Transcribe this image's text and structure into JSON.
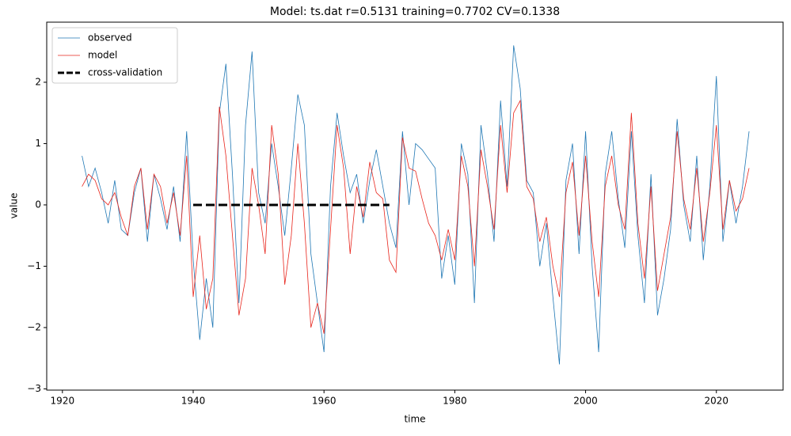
{
  "chart_data": {
    "type": "line",
    "title": "Model: ts.dat  r=0.5131  training=0.7702  CV=0.1338",
    "xlabel": "time",
    "ylabel": "value",
    "x": [
      1923,
      1924,
      1925,
      1926,
      1927,
      1928,
      1929,
      1930,
      1931,
      1932,
      1933,
      1934,
      1935,
      1936,
      1937,
      1938,
      1939,
      1940,
      1941,
      1942,
      1943,
      1944,
      1945,
      1946,
      1947,
      1948,
      1949,
      1950,
      1951,
      1952,
      1953,
      1954,
      1955,
      1956,
      1957,
      1958,
      1959,
      1960,
      1961,
      1962,
      1963,
      1964,
      1965,
      1966,
      1967,
      1968,
      1969,
      1970,
      1971,
      1972,
      1973,
      1974,
      1975,
      1976,
      1977,
      1978,
      1979,
      1980,
      1981,
      1982,
      1983,
      1984,
      1985,
      1986,
      1987,
      1988,
      1989,
      1990,
      1991,
      1992,
      1993,
      1994,
      1995,
      1996,
      1997,
      1998,
      1999,
      2000,
      2001,
      2002,
      2003,
      2004,
      2005,
      2006,
      2007,
      2008,
      2009,
      2010,
      2011,
      2012,
      2013,
      2014,
      2015,
      2016,
      2017,
      2018,
      2019,
      2020,
      2021,
      2022,
      2023,
      2024,
      2025
    ],
    "series": [
      {
        "name": "observed",
        "color": "#1f77b4",
        "linestyle": "solid",
        "values": [
          0.8,
          0.3,
          0.6,
          0.2,
          -0.3,
          0.4,
          -0.4,
          -0.5,
          0.2,
          0.6,
          -0.6,
          0.5,
          0.1,
          -0.4,
          0.3,
          -0.6,
          1.2,
          -0.9,
          -2.2,
          -1.2,
          -2.0,
          1.5,
          2.3,
          0.5,
          -1.6,
          1.3,
          2.5,
          0.2,
          -0.3,
          1.0,
          0.3,
          -0.5,
          0.6,
          1.8,
          1.3,
          -0.8,
          -1.6,
          -2.4,
          0.3,
          1.5,
          0.8,
          0.2,
          0.5,
          -0.3,
          0.4,
          0.9,
          0.3,
          -0.3,
          -0.7,
          1.2,
          0.0,
          1.0,
          0.9,
          0.75,
          0.6,
          -1.2,
          -0.5,
          -1.3,
          1.0,
          0.5,
          -1.6,
          1.3,
          0.5,
          -0.6,
          1.7,
          0.3,
          2.6,
          1.9,
          0.4,
          0.2,
          -1.0,
          -0.3,
          -1.5,
          -2.6,
          0.4,
          1.0,
          -0.8,
          1.2,
          -1.0,
          -2.4,
          0.5,
          1.2,
          0.1,
          -0.7,
          1.2,
          -0.5,
          -1.6,
          0.5,
          -1.8,
          -1.2,
          -0.4,
          1.4,
          0.0,
          -0.6,
          0.8,
          -0.9,
          0.3,
          2.1,
          -0.6,
          0.4,
          -0.3,
          0.3,
          1.2
        ]
      },
      {
        "name": "model",
        "color": "#e8251c",
        "linestyle": "solid",
        "values": [
          0.3,
          0.5,
          0.4,
          0.1,
          0.0,
          0.2,
          -0.2,
          -0.5,
          0.3,
          0.6,
          -0.4,
          0.5,
          0.3,
          -0.3,
          0.2,
          -0.5,
          0.8,
          -1.5,
          -0.5,
          -1.7,
          -1.2,
          1.6,
          0.8,
          -0.5,
          -1.8,
          -1.2,
          0.6,
          0.0,
          -0.8,
          1.3,
          0.5,
          -1.3,
          -0.5,
          1.0,
          -0.3,
          -2.0,
          -1.6,
          -2.1,
          -0.4,
          1.3,
          0.6,
          -0.8,
          0.3,
          -0.2,
          0.7,
          0.2,
          0.1,
          -0.9,
          -1.1,
          1.1,
          0.6,
          0.55,
          0.1,
          -0.3,
          -0.5,
          -0.9,
          -0.4,
          -0.9,
          0.8,
          0.3,
          -1.0,
          0.9,
          0.3,
          -0.4,
          1.3,
          0.2,
          1.5,
          1.7,
          0.3,
          0.1,
          -0.6,
          -0.2,
          -1.0,
          -1.5,
          0.2,
          0.7,
          -0.5,
          0.8,
          -0.6,
          -1.5,
          0.3,
          0.8,
          0.0,
          -0.4,
          1.5,
          -0.3,
          -1.2,
          0.3,
          -1.4,
          -0.8,
          -0.2,
          1.2,
          0.1,
          -0.4,
          0.6,
          -0.6,
          0.2,
          1.3,
          -0.4,
          0.4,
          -0.1,
          0.1,
          0.6
        ]
      },
      {
        "name": "cross-validation",
        "color": "#000000",
        "linestyle": "dashed",
        "x": [
          1940,
          1970
        ],
        "values": [
          0,
          0
        ]
      }
    ],
    "xlim": [
      1917.6,
      2030.2
    ],
    "ylim": [
      -3.02,
      2.98
    ],
    "xticks": [
      1920,
      1940,
      1960,
      1980,
      2000,
      2020
    ],
    "yticks": [
      {
        "value": -3,
        "label": "−3"
      },
      {
        "value": -2,
        "label": "−2"
      },
      {
        "value": -1,
        "label": "−1"
      },
      0,
      1,
      2
    ],
    "legend": "upper left",
    "grid": false
  }
}
